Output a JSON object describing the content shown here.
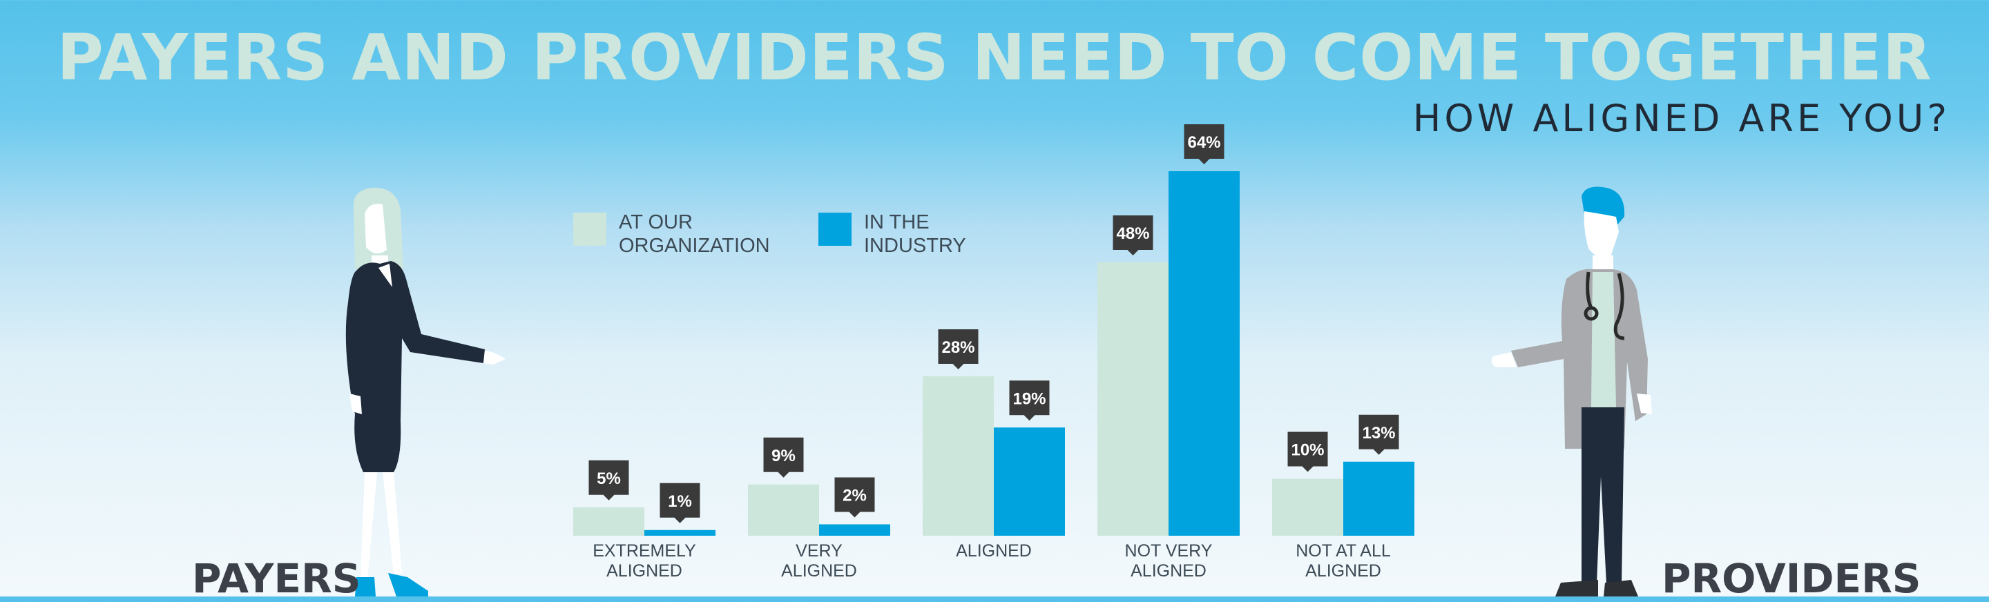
{
  "header": {
    "title": "PAYERS AND PROVIDERS NEED TO COME TOGETHER",
    "subtitle": "HOW ALIGNED ARE YOU?"
  },
  "colors": {
    "title": "#cde7de",
    "subtitle": "#1f2a36",
    "organization": "#cce6dc",
    "industry": "#00a3de",
    "callout": "#3a3a3a",
    "callout_text": "#ffffff",
    "axis_text": "#3c4a55"
  },
  "figures": {
    "left_label": "PAYERS",
    "right_label": "PROVIDERS",
    "left_icon": "payer-woman-illustration",
    "right_icon": "provider-doctor-illustration"
  },
  "chart_data": {
    "type": "bar",
    "title": "",
    "xlabel": "",
    "ylabel": "",
    "categories": [
      [
        "EXTREMELY",
        "ALIGNED"
      ],
      [
        "VERY",
        "ALIGNED"
      ],
      [
        "ALIGNED"
      ],
      [
        "NOT VERY",
        "ALIGNED"
      ],
      [
        "NOT AT ALL",
        "ALIGNED"
      ]
    ],
    "series": [
      {
        "name": "AT OUR ORGANIZATION",
        "legend_lines": [
          "AT OUR",
          "ORGANIZATION"
        ],
        "values": [
          5,
          9,
          28,
          48,
          10
        ],
        "labels": [
          "5%",
          "9%",
          "28%",
          "48%",
          "10%"
        ]
      },
      {
        "name": "IN THE INDUSTRY",
        "legend_lines": [
          "IN THE",
          "INDUSTRY"
        ],
        "values": [
          1,
          2,
          19,
          64,
          13
        ],
        "labels": [
          "1%",
          "2%",
          "19%",
          "64%",
          "13%"
        ]
      }
    ],
    "ylim": [
      0,
      64
    ],
    "grid": false,
    "legend": "top-left"
  }
}
